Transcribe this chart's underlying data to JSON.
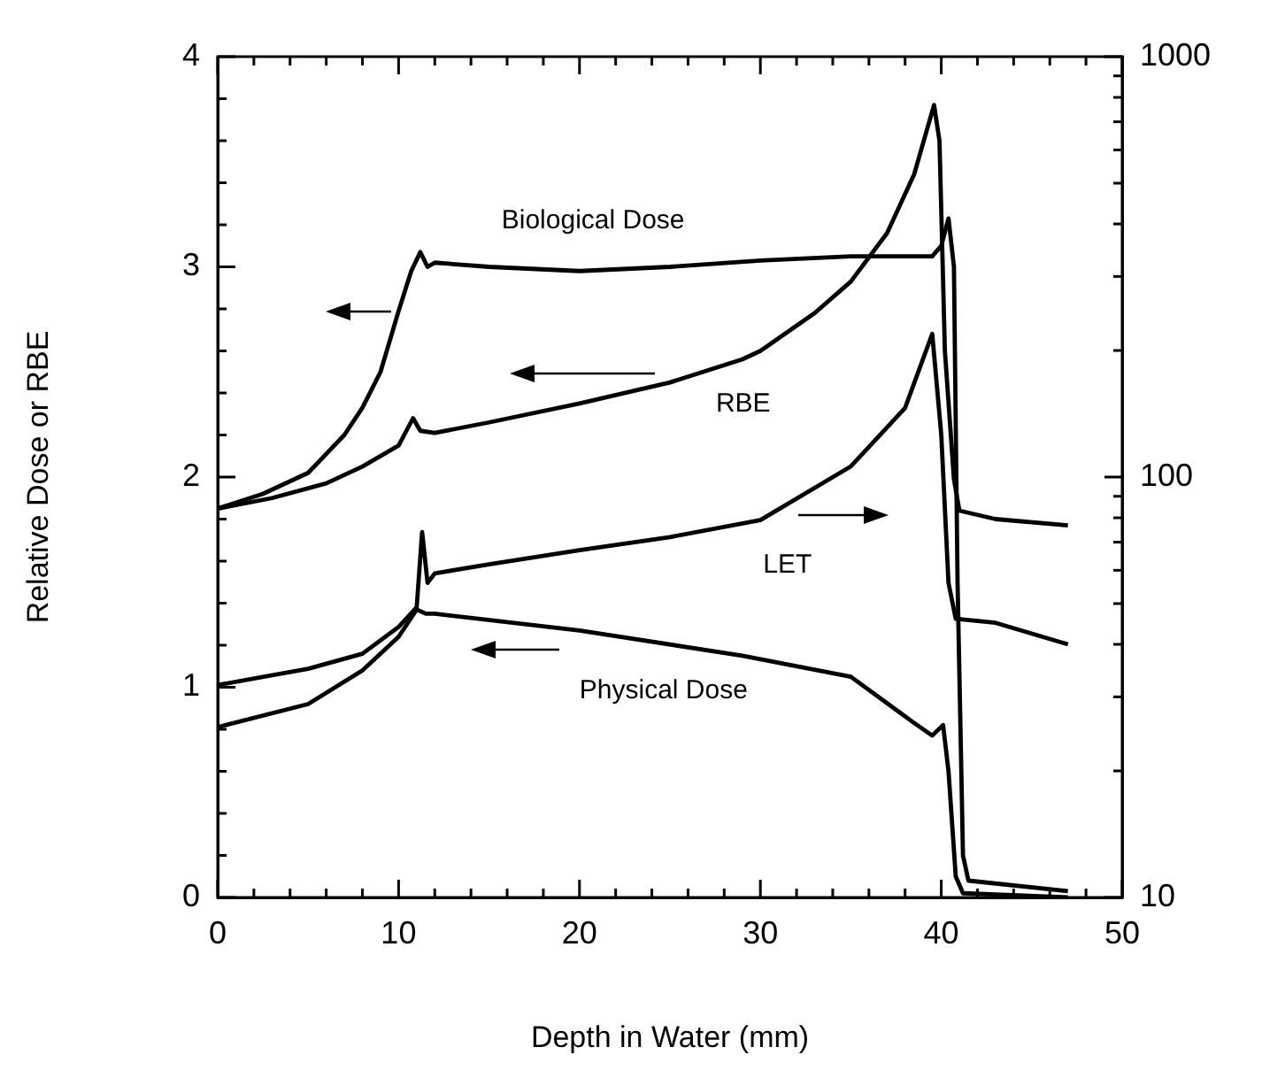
{
  "chart_data": {
    "type": "line",
    "xlabel": "Depth in Water (mm)",
    "ylabel": "Relative Dose or RBE",
    "xlim": [
      0,
      50
    ],
    "ylim": [
      0,
      4
    ],
    "y2lim": [
      10,
      1000
    ],
    "log": "y2",
    "grid": false,
    "legend": false,
    "marker": "none",
    "line_style": "solid",
    "xticks": [
      0,
      {
        "value": 2,
        "label": null
      },
      {
        "value": 4,
        "label": null
      },
      {
        "value": 6,
        "label": null
      },
      {
        "value": 8,
        "label": null
      },
      10,
      {
        "value": 12,
        "label": null
      },
      {
        "value": 14,
        "label": null
      },
      {
        "value": 16,
        "label": null
      },
      {
        "value": 18,
        "label": null
      },
      20,
      {
        "value": 22,
        "label": null
      },
      {
        "value": 24,
        "label": null
      },
      {
        "value": 26,
        "label": null
      },
      {
        "value": 28,
        "label": null
      },
      30,
      {
        "value": 32,
        "label": null
      },
      {
        "value": 34,
        "label": null
      },
      {
        "value": 36,
        "label": null
      },
      {
        "value": 38,
        "label": null
      },
      40,
      {
        "value": 42,
        "label": null
      },
      {
        "value": 44,
        "label": null
      },
      {
        "value": 46,
        "label": null
      },
      {
        "value": 48,
        "label": null
      },
      50
    ],
    "yticks": [
      0,
      {
        "value": 0.2,
        "label": null
      },
      {
        "value": 0.4,
        "label": null
      },
      {
        "value": 0.6,
        "label": null
      },
      {
        "value": 0.8,
        "label": null
      },
      1,
      {
        "value": 1.2,
        "label": null
      },
      {
        "value": 1.4,
        "label": null
      },
      {
        "value": 1.6,
        "label": null
      },
      {
        "value": 1.8,
        "label": null
      },
      2,
      {
        "value": 2.2,
        "label": null
      },
      {
        "value": 2.4,
        "label": null
      },
      {
        "value": 2.6,
        "label": null
      },
      {
        "value": 2.8,
        "label": null
      },
      3,
      {
        "value": 3.2,
        "label": null
      },
      {
        "value": 3.4,
        "label": null
      },
      {
        "value": 3.6,
        "label": null
      },
      {
        "value": 3.8,
        "label": null
      },
      4
    ],
    "y2ticks": [
      10,
      {
        "value": 20,
        "label": null
      },
      {
        "value": 30,
        "label": null
      },
      {
        "value": 40,
        "label": null
      },
      {
        "value": 50,
        "label": null
      },
      {
        "value": 60,
        "label": null
      },
      {
        "value": 70,
        "label": null
      },
      {
        "value": 80,
        "label": null
      },
      {
        "value": 90,
        "label": null
      },
      100,
      {
        "value": 200,
        "label": null
      },
      {
        "value": 300,
        "label": null
      },
      {
        "value": 400,
        "label": null
      },
      {
        "value": 500,
        "label": null
      },
      {
        "value": 600,
        "label": null
      },
      {
        "value": 700,
        "label": null
      },
      {
        "value": 800,
        "label": null
      },
      {
        "value": 900,
        "label": null
      },
      1000
    ],
    "series": [
      {
        "name": "Biological Dose",
        "color": "#000000",
        "x": [
          0,
          2.5,
          5,
          7,
          8,
          9,
          10,
          10.7,
          11.2,
          11.6,
          12,
          15,
          20,
          25,
          30,
          35,
          39.5,
          40,
          40.4,
          40.7,
          40.9,
          41.2,
          41.5,
          47
        ],
        "values": [
          1.85,
          1.92,
          2.02,
          2.2,
          2.33,
          2.5,
          2.79,
          2.98,
          3.07,
          3.0,
          3.02,
          3.0,
          2.98,
          3.0,
          3.03,
          3.05,
          3.05,
          3.1,
          3.23,
          3.0,
          1.5,
          0.2,
          0.08,
          0.03
        ]
      },
      {
        "name": "RBE",
        "color": "#000000",
        "x": [
          0,
          3,
          6,
          8,
          10,
          10.8,
          11.2,
          12,
          15,
          20,
          25,
          29,
          30,
          33,
          35,
          37,
          38.5,
          39.6,
          39.9,
          40.2,
          40.7,
          41,
          43,
          47
        ],
        "values": [
          1.85,
          1.9,
          1.97,
          2.05,
          2.15,
          2.28,
          2.22,
          2.21,
          2.26,
          2.35,
          2.45,
          2.56,
          2.6,
          2.78,
          2.93,
          3.16,
          3.44,
          3.77,
          3.6,
          2.6,
          1.99,
          1.84,
          1.8,
          1.77
        ]
      },
      {
        "name": "LET",
        "color": "#000000",
        "axis": "y2",
        "x": [
          0,
          5,
          8,
          10,
          11,
          11.3,
          11.6,
          12,
          15,
          20,
          25,
          30,
          35,
          38,
          39.5,
          40,
          40.4,
          40.8,
          43,
          47
        ],
        "values": [
          32,
          35,
          38,
          44,
          49,
          74,
          56,
          59,
          62,
          67,
          72,
          79,
          106,
          146,
          219,
          126,
          56,
          46,
          45,
          40
        ]
      },
      {
        "name": "Physical Dose",
        "color": "#000000",
        "x": [
          0,
          5,
          8,
          10,
          11,
          11.5,
          12,
          20,
          29,
          35,
          38.5,
          39.5,
          40.1,
          40.4,
          40.8,
          41.2,
          47
        ],
        "values": [
          0.81,
          0.92,
          1.08,
          1.24,
          1.37,
          1.35,
          1.35,
          1.27,
          1.15,
          1.05,
          0.83,
          0.77,
          0.82,
          0.6,
          0.1,
          0.02,
          0.0
        ]
      }
    ]
  }
}
